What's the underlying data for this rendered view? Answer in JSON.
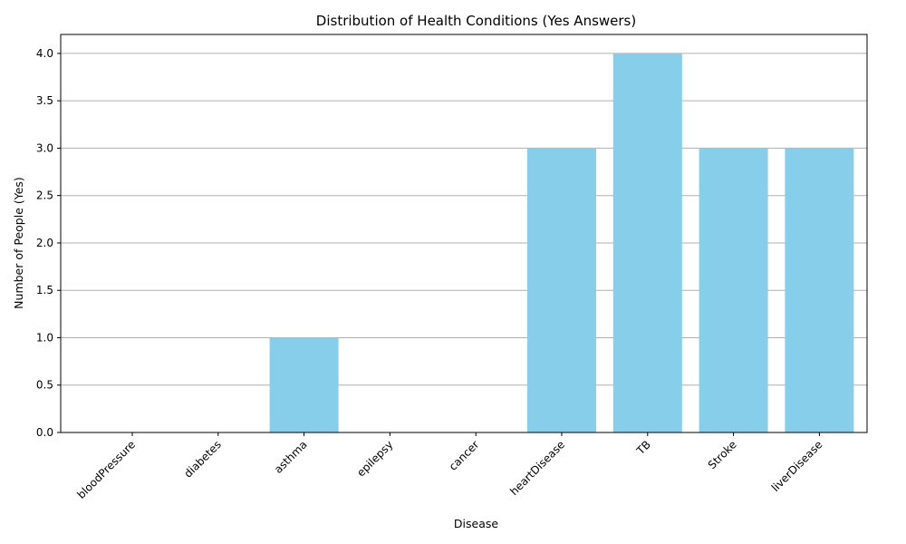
{
  "chart_data": {
    "type": "bar",
    "title": "Distribution of Health Conditions (Yes Answers)",
    "xlabel": "Disease",
    "ylabel": "Number of People (Yes)",
    "categories": [
      "bloodPressure",
      "diabetes",
      "asthma",
      "epilepsy",
      "cancer",
      "heartDisease",
      "TB",
      "Stroke",
      "liverDisease"
    ],
    "values": [
      0,
      0,
      1,
      0,
      0,
      3,
      4,
      3,
      3
    ],
    "ylim": [
      0,
      4.2
    ],
    "yticks": [
      "0.0",
      "0.5",
      "1.0",
      "1.5",
      "2.0",
      "2.5",
      "3.0",
      "3.5",
      "4.0"
    ],
    "bar_color": "#87ceeb",
    "grid": "y-axis",
    "legend": "none"
  }
}
